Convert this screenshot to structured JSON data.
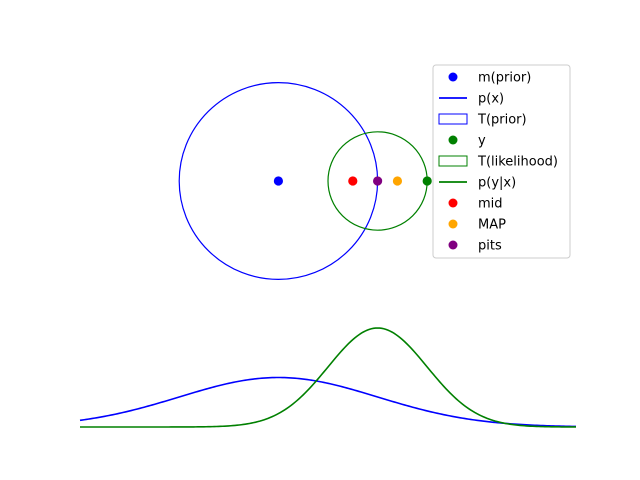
{
  "chart_data": {
    "type": "scatter",
    "title": "",
    "xlabel": "",
    "ylabel": "",
    "axes_visible": false,
    "xlim": [
      -4,
      6
    ],
    "top_panel": {
      "ylim": [
        -2.5,
        2.5
      ],
      "points": [
        {
          "name": "m(prior)",
          "x": 0.0,
          "y": 0.0,
          "color": "#0000ff"
        },
        {
          "name": "mid",
          "x": 1.5,
          "y": 0.0,
          "color": "#ff0000"
        },
        {
          "name": "pits",
          "x": 2.0,
          "y": 0.0,
          "color": "#800080"
        },
        {
          "name": "MAP",
          "x": 2.4,
          "y": 0.0,
          "color": "#ffa500"
        },
        {
          "name": "y",
          "x": 3.0,
          "y": 0.0,
          "color": "#008000"
        }
      ],
      "ellipses": [
        {
          "name": "T(prior)",
          "cx": 0.0,
          "cy": 0.0,
          "rx": 2.0,
          "ry": 2.0,
          "color": "#0000ff"
        },
        {
          "name": "T(likelihood)",
          "cx": 2.0,
          "cy": 0.0,
          "rx": 1.0,
          "ry": 1.0,
          "color": "#008000"
        }
      ]
    },
    "bottom_panel": {
      "ylim": [
        0,
        0.4
      ],
      "curves": [
        {
          "name": "p(x)",
          "mean": 0.0,
          "sd": 2.0,
          "color": "#0000ff"
        },
        {
          "name": "p(y|x)",
          "mean": 2.0,
          "sd": 1.0,
          "color": "#008000"
        }
      ]
    },
    "legend": {
      "location": "top-right",
      "entries": [
        {
          "label": "m(prior)",
          "kind": "marker",
          "color": "#0000ff"
        },
        {
          "label": "p(x)",
          "kind": "line",
          "color": "#0000ff"
        },
        {
          "label": "T(prior)",
          "kind": "patch",
          "color": "#0000ff"
        },
        {
          "label": "y",
          "kind": "marker",
          "color": "#008000"
        },
        {
          "label": "T(likelihood)",
          "kind": "patch",
          "color": "#008000"
        },
        {
          "label": "p(y|x)",
          "kind": "line",
          "color": "#008000"
        },
        {
          "label": "mid",
          "kind": "marker",
          "color": "#ff0000"
        },
        {
          "label": "MAP",
          "kind": "marker",
          "color": "#ffa500"
        },
        {
          "label": "pits",
          "kind": "marker",
          "color": "#800080"
        }
      ]
    }
  }
}
